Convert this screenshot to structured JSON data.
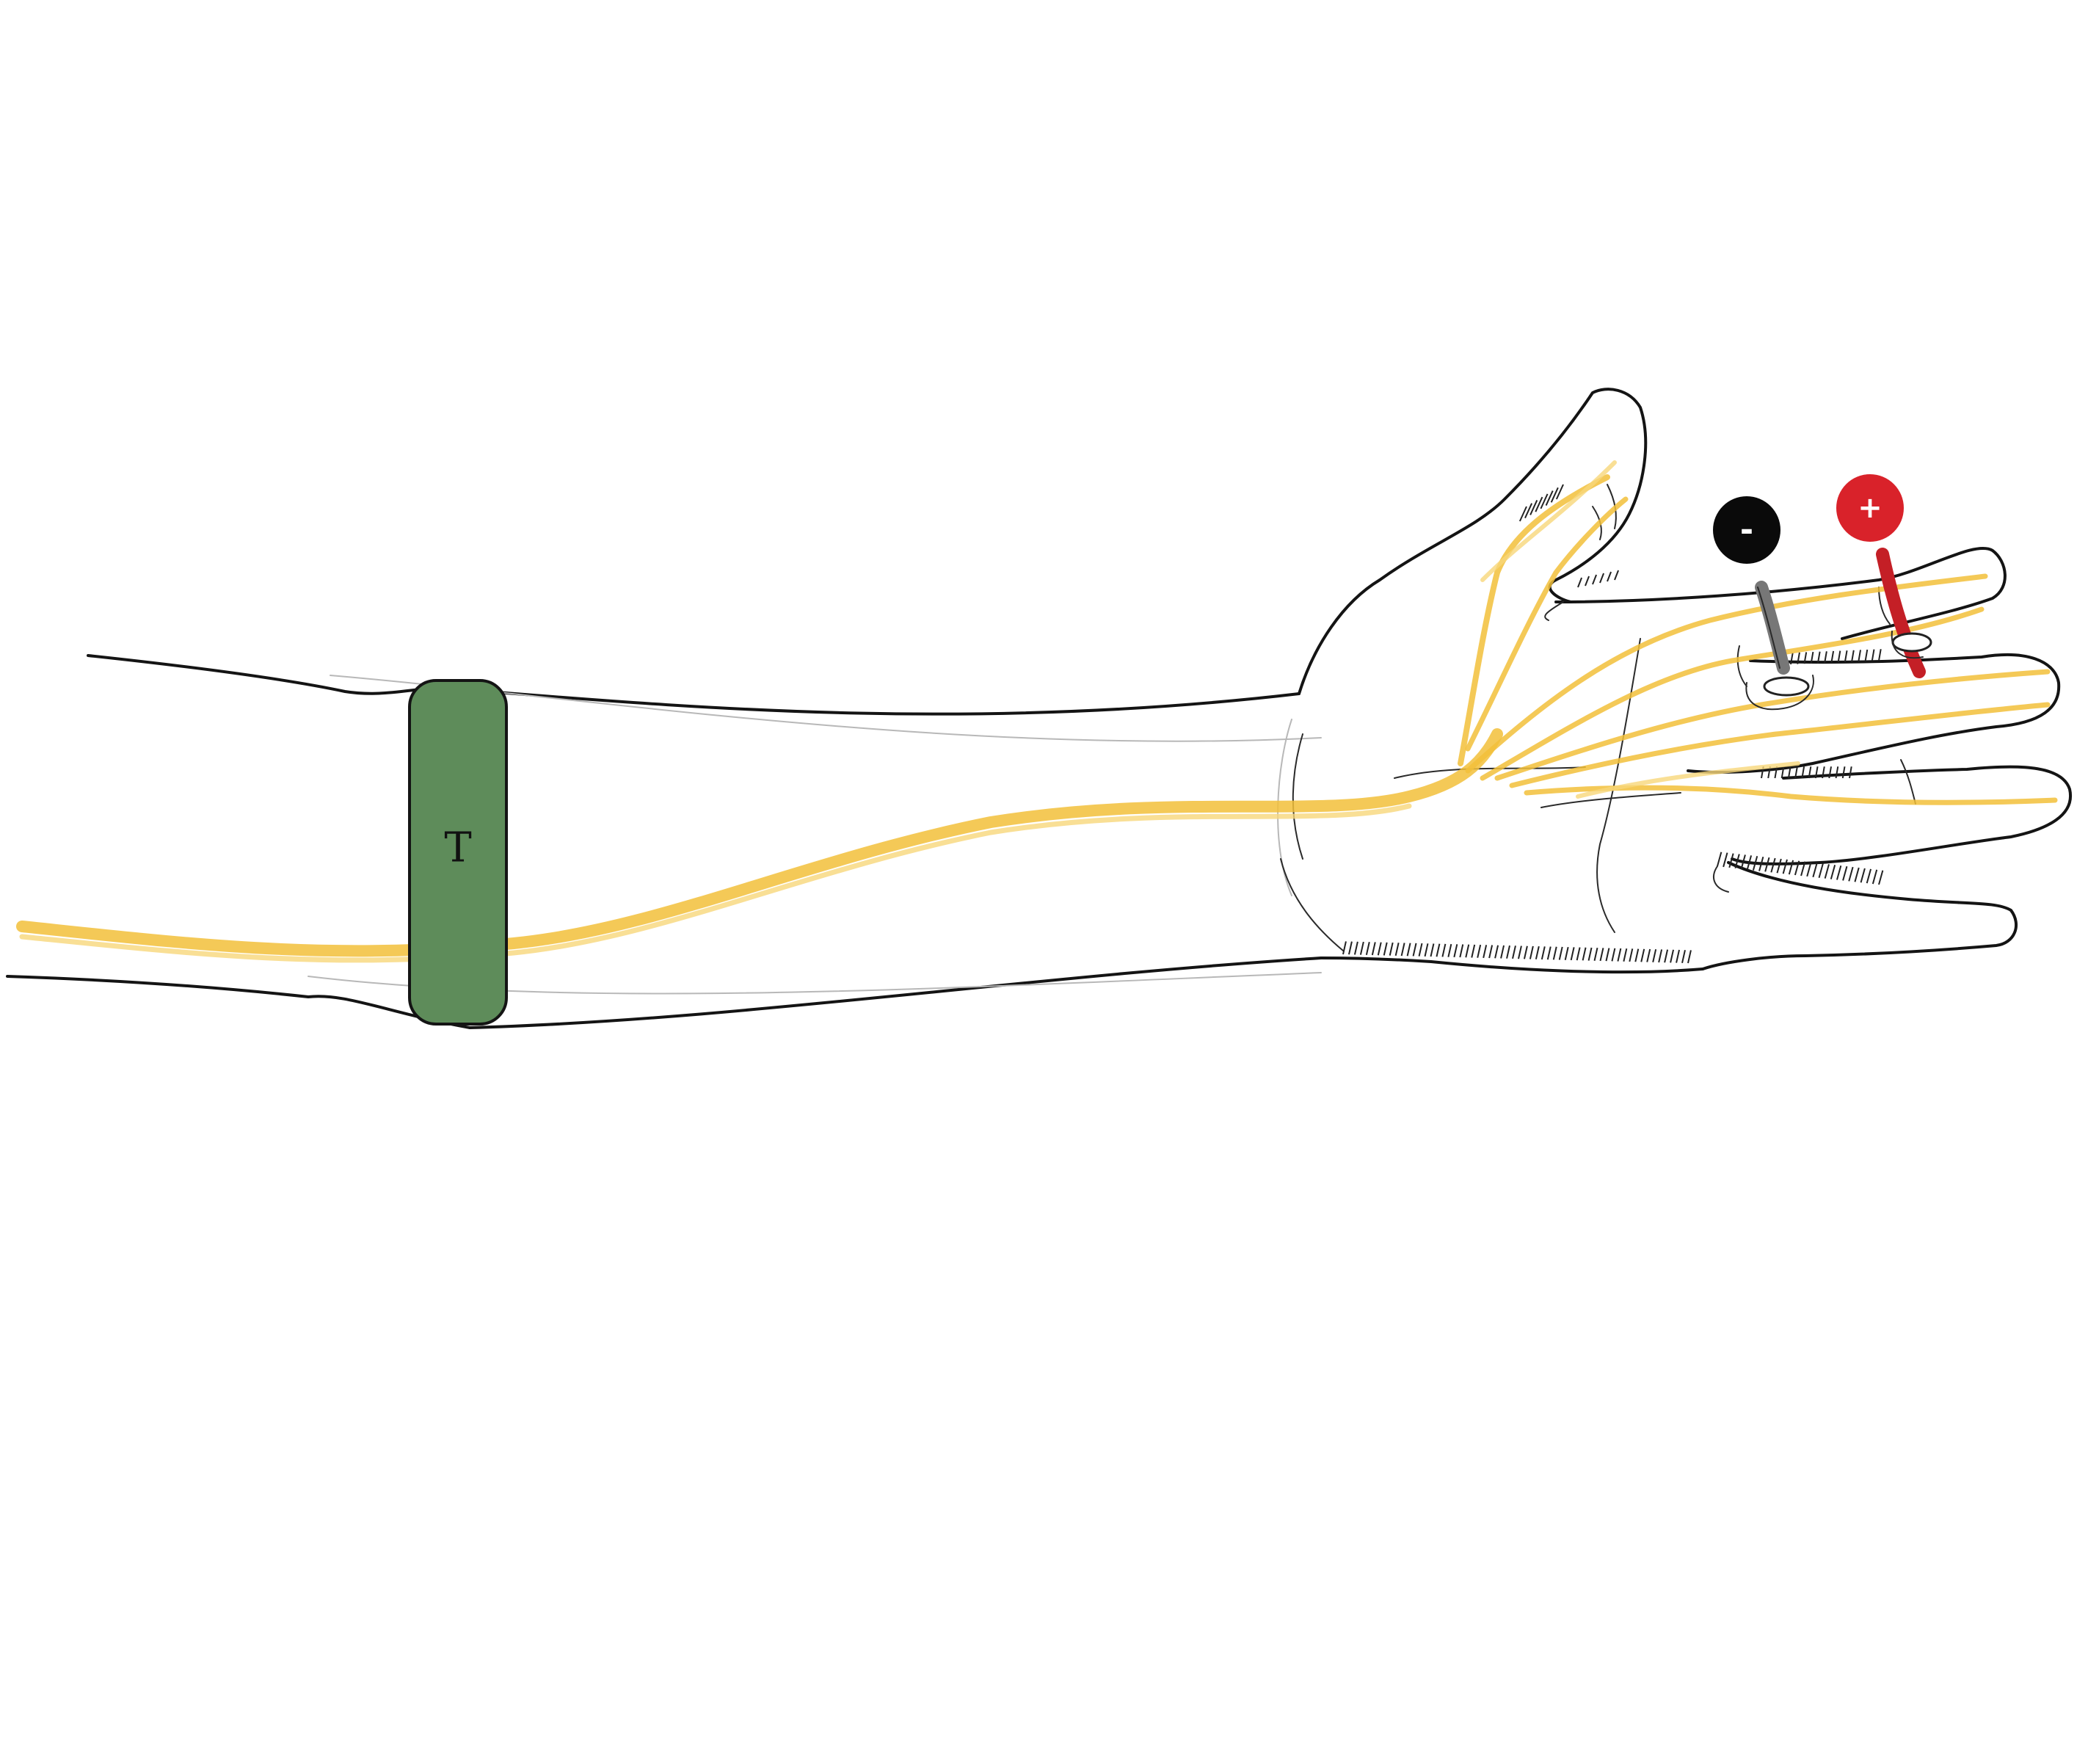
{
  "cuff": {
    "label": "T",
    "fill": "#5e8c5a",
    "stroke": "#141414"
  },
  "electrodes": {
    "negative": {
      "symbol": "-",
      "fill": "#0a0a0a",
      "text_color": "#ffffff",
      "ring_color": "#777777"
    },
    "positive": {
      "symbol": "+",
      "fill": "#d9222a",
      "text_color": "#ffffff",
      "ring_color": "#c41f26"
    }
  },
  "colors": {
    "nerve": "#f2bf3a",
    "nerve_light": "#f7d77a",
    "outline": "#141414"
  },
  "icons": [
    "arm-icon",
    "hand-icon",
    "nerve-icon",
    "tourniquet-cuff-icon",
    "ring-electrode-icon"
  ]
}
